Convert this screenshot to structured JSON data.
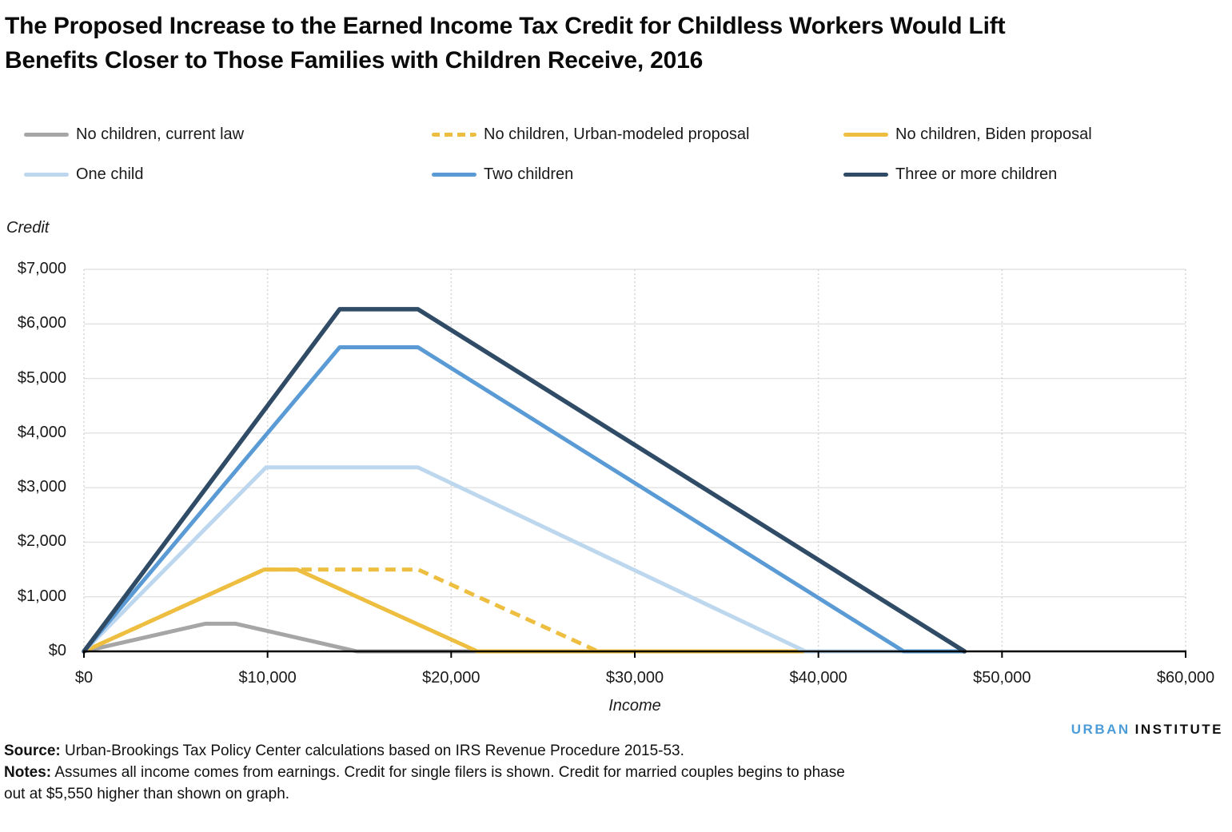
{
  "title": {
    "line1": "The Proposed Increase to the Earned Income Tax Credit for Childless Workers Would Lift",
    "line2": "Benefits Closer to Those Families with Children Receive, 2016"
  },
  "legend": {
    "items": [
      {
        "label": "No children, current law",
        "color": "#A6A6A6",
        "dash": false
      },
      {
        "label": "No children, Urban-modeled proposal",
        "color": "#EDBE3F",
        "dash": true
      },
      {
        "label": "No children, Biden proposal",
        "color": "#EDBE3F",
        "dash": false
      },
      {
        "label": "One child",
        "color": "#BDD7EE",
        "dash": false
      },
      {
        "label": "Two children",
        "color": "#5B9BD5",
        "dash": false
      },
      {
        "label": "Three or more children",
        "color": "#2F4B66",
        "dash": false
      }
    ]
  },
  "axes": {
    "y_title": "Credit",
    "x_title": "Income"
  },
  "chart_data": {
    "type": "line",
    "title": "The Proposed Increase to the Earned Income Tax Credit for Childless Workers Would Lift Benefits Closer to Those Families with Children Receive, 2016",
    "xlabel": "Income",
    "ylabel": "Credit",
    "xlim": [
      0,
      60000
    ],
    "ylim": [
      0,
      7000
    ],
    "x_tick_values": [
      0,
      10000,
      20000,
      30000,
      40000,
      50000,
      60000
    ],
    "x_tick_labels": [
      "$0",
      "$10,000",
      "$20,000",
      "$30,000",
      "$40,000",
      "$50,000",
      "$60,000"
    ],
    "y_tick_values": [
      0,
      1000,
      2000,
      3000,
      4000,
      5000,
      6000,
      7000
    ],
    "y_tick_labels": [
      "$0",
      "$1,000",
      "$2,000",
      "$3,000",
      "$4,000",
      "$5,000",
      "$6,000",
      "$7,000"
    ],
    "grid": {
      "horizontal_color": "#E2E2E2",
      "vertical_dotted_color": "#D6D6D6",
      "axis_color": "#000000"
    },
    "legend_position": "top",
    "series": [
      {
        "name": "No children, current law",
        "color": "#A6A6A6",
        "dash": false,
        "points": [
          [
            0,
            0
          ],
          [
            6610,
            506
          ],
          [
            8270,
            506
          ],
          [
            14880,
            0
          ],
          [
            47955,
            0
          ]
        ]
      },
      {
        "name": "No children, Urban-modeled proposal",
        "color": "#EDBE3F",
        "dash": true,
        "points": [
          [
            0,
            0
          ],
          [
            9820,
            1500
          ],
          [
            18190,
            1500
          ],
          [
            28000,
            0
          ],
          [
            47955,
            0
          ]
        ]
      },
      {
        "name": "No children, Biden proposal",
        "color": "#EDBE3F",
        "dash": false,
        "points": [
          [
            0,
            0
          ],
          [
            9820,
            1500
          ],
          [
            11610,
            1500
          ],
          [
            21427,
            0
          ],
          [
            47955,
            0
          ]
        ]
      },
      {
        "name": "One child",
        "color": "#BDD7EE",
        "dash": false,
        "points": [
          [
            0,
            0
          ],
          [
            9920,
            3373
          ],
          [
            18190,
            3373
          ],
          [
            39296,
            0
          ],
          [
            47955,
            0
          ]
        ]
      },
      {
        "name": "Two children",
        "color": "#5B9BD5",
        "dash": false,
        "points": [
          [
            0,
            0
          ],
          [
            13930,
            5572
          ],
          [
            18190,
            5572
          ],
          [
            44648,
            0
          ],
          [
            47955,
            0
          ]
        ]
      },
      {
        "name": "Three or more children",
        "color": "#2F4B66",
        "dash": false,
        "points": [
          [
            0,
            0
          ],
          [
            13930,
            6269
          ],
          [
            18190,
            6269
          ],
          [
            47955,
            0
          ]
        ]
      }
    ]
  },
  "footer": {
    "source_label": "Source:",
    "source_text": " Urban-Brookings Tax Policy Center calculations based on IRS Revenue Procedure 2015-53.",
    "notes_label": "Notes:",
    "notes_line1": " Assumes all income comes from earnings. Credit for single filers is shown. Credit for married couples begins to phase",
    "notes_line2": "out at $5,550 higher than shown on graph.",
    "logo_urban": "URBAN",
    "logo_institute": "INSTITUTE"
  }
}
